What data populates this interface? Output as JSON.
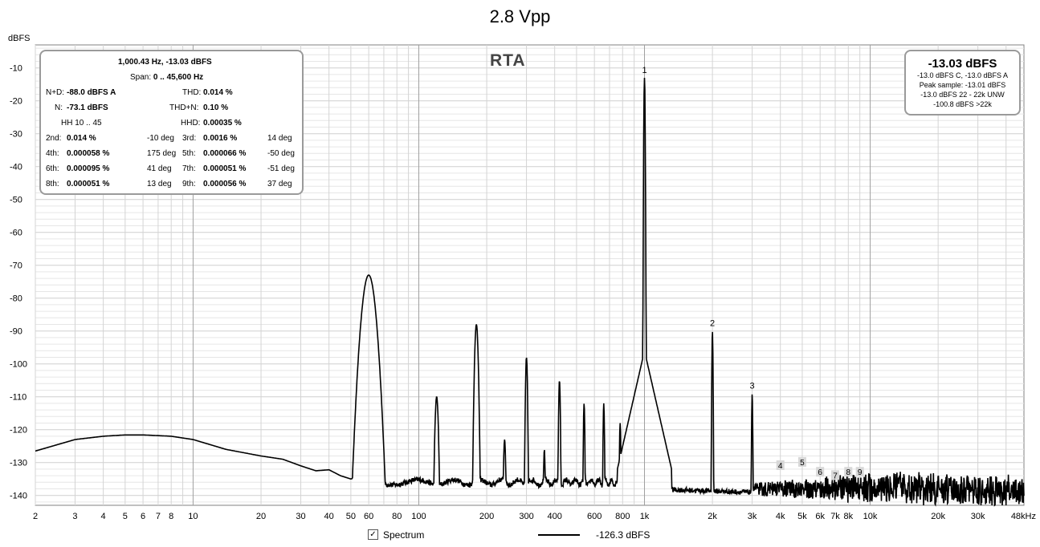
{
  "title": "2.8 Vpp",
  "chart_data": {
    "type": "line",
    "title": "2.8 Vpp",
    "ylabel": "dBFS",
    "xlabel": "",
    "xscale": "log",
    "xlim": [
      2,
      48000
    ],
    "ylim": [
      -143,
      -3
    ],
    "grid": true,
    "yticks": [
      -10,
      -20,
      -30,
      -40,
      -50,
      -60,
      -70,
      -80,
      -90,
      -100,
      -110,
      -120,
      -130,
      -140
    ],
    "xticks": [
      {
        "v": 2,
        "label": "2"
      },
      {
        "v": 3,
        "label": "3"
      },
      {
        "v": 4,
        "label": "4"
      },
      {
        "v": 5,
        "label": "5"
      },
      {
        "v": 6,
        "label": "6"
      },
      {
        "v": 7,
        "label": "7"
      },
      {
        "v": 8,
        "label": "8"
      },
      {
        "v": 10,
        "label": "10"
      },
      {
        "v": 20,
        "label": "20"
      },
      {
        "v": 30,
        "label": "30"
      },
      {
        "v": 40,
        "label": "40"
      },
      {
        "v": 50,
        "label": "50"
      },
      {
        "v": 60,
        "label": "60"
      },
      {
        "v": 80,
        "label": "80"
      },
      {
        "v": 100,
        "label": "100"
      },
      {
        "v": 200,
        "label": "200"
      },
      {
        "v": 300,
        "label": "300"
      },
      {
        "v": 400,
        "label": "400"
      },
      {
        "v": 600,
        "label": "600"
      },
      {
        "v": 800,
        "label": "800"
      },
      {
        "v": 1000,
        "label": "1k"
      },
      {
        "v": 2000,
        "label": "2k"
      },
      {
        "v": 3000,
        "label": "3k"
      },
      {
        "v": 4000,
        "label": "4k"
      },
      {
        "v": 5000,
        "label": "5k"
      },
      {
        "v": 6000,
        "label": "6k"
      },
      {
        "v": 7000,
        "label": "7k"
      },
      {
        "v": 8000,
        "label": "8k"
      },
      {
        "v": 10000,
        "label": "10k"
      },
      {
        "v": 20000,
        "label": "20k"
      },
      {
        "v": 30000,
        "label": "30k"
      },
      {
        "v": 48000,
        "label": "48kHz"
      }
    ],
    "series": [
      {
        "name": "Spectrum",
        "color": "#000000",
        "baseline": [
          [
            2,
            -126.5
          ],
          [
            3,
            -123
          ],
          [
            4,
            -122
          ],
          [
            5,
            -121.6
          ],
          [
            6,
            -121.6
          ],
          [
            8,
            -122
          ],
          [
            10,
            -123
          ],
          [
            14,
            -126
          ],
          [
            20,
            -128
          ],
          [
            25,
            -129
          ],
          [
            30,
            -131
          ],
          [
            35,
            -132.5
          ],
          [
            40,
            -132.2
          ],
          [
            45,
            -134
          ],
          [
            50,
            -135
          ],
          [
            56,
            -134
          ]
        ],
        "peaks": [
          {
            "f": 60,
            "db": -73,
            "w": 0.045
          },
          {
            "f": 120,
            "db": -110,
            "w": 0.012
          },
          {
            "f": 180,
            "db": -88,
            "w": 0.012
          },
          {
            "f": 240,
            "db": -123,
            "w": 0.008
          },
          {
            "f": 300,
            "db": -98,
            "w": 0.007
          },
          {
            "f": 360,
            "db": -126,
            "w": 0.006
          },
          {
            "f": 420,
            "db": -105,
            "w": 0.006
          },
          {
            "f": 540,
            "db": -112,
            "w": 0.005
          },
          {
            "f": 660,
            "db": -112,
            "w": 0.005
          },
          {
            "f": 780,
            "db": -118,
            "w": 0.005
          },
          {
            "f": 1000,
            "db": -13,
            "w": 0.004
          },
          {
            "f": 2000,
            "db": -90,
            "w": 0.004
          },
          {
            "f": 3000,
            "db": -109,
            "w": 0.004
          }
        ],
        "noise_floor": -136
      }
    ],
    "harmonic_markers": [
      {
        "n": "1",
        "f": 1000,
        "db": -13
      },
      {
        "n": "2",
        "f": 2000,
        "db": -90
      },
      {
        "n": "3",
        "f": 3000,
        "db": -109
      },
      {
        "n": "4",
        "f": 4000,
        "db": -133
      },
      {
        "n": "5",
        "f": 5000,
        "db": -132
      },
      {
        "n": "6",
        "f": 6000,
        "db": -135
      },
      {
        "n": "7",
        "f": 7000,
        "db": -136
      },
      {
        "n": "8",
        "f": 8000,
        "db": -135
      },
      {
        "n": "9",
        "f": 9000,
        "db": -135
      }
    ]
  },
  "rta_label": "RTA",
  "info": {
    "line1": "1,000.43 Hz, -13.03 dBFS",
    "span_label": "Span:",
    "span_value": "0 .. 45,600 Hz",
    "nd_label": "N+D:",
    "nd_value": "-88.0 dBFS A",
    "thd_label": "THD:",
    "thd_value": "0.014 %",
    "n_label": "N:",
    "n_value": "-73.1 dBFS",
    "thdn_label": "THD+N:",
    "thdn_value": "0.10 %",
    "hh": "HH 10 .. 45",
    "hhd_label": "HHD:",
    "hhd_value": "0.00035 %",
    "harmonics": [
      {
        "label": "2nd:",
        "value": "0.014 %",
        "phase": "-10 deg"
      },
      {
        "label": "3rd:",
        "value": "0.0016 %",
        "phase": "14 deg"
      },
      {
        "label": "4th:",
        "value": "0.000058 %",
        "phase": "175 deg"
      },
      {
        "label": "5th:",
        "value": "0.000066 %",
        "phase": "-50 deg"
      },
      {
        "label": "6th:",
        "value": "0.000095 %",
        "phase": "41 deg"
      },
      {
        "label": "7th:",
        "value": "0.000051 %",
        "phase": "-51 deg"
      },
      {
        "label": "8th:",
        "value": "0.000051 %",
        "phase": "13 deg"
      },
      {
        "label": "9th:",
        "value": "0.000056 %",
        "phase": "37 deg"
      }
    ]
  },
  "level": {
    "main": "-13.03 dBFS",
    "line1": "-13.0 dBFS C, -13.0 dBFS A",
    "line2": "Peak sample: -13.01 dBFS",
    "line3": "-13.0 dBFS 22 - 22k UNW",
    "line4": "-100.8 dBFS >22k"
  },
  "legend": {
    "label": "Spectrum",
    "value": "-126.3 dBFS"
  }
}
